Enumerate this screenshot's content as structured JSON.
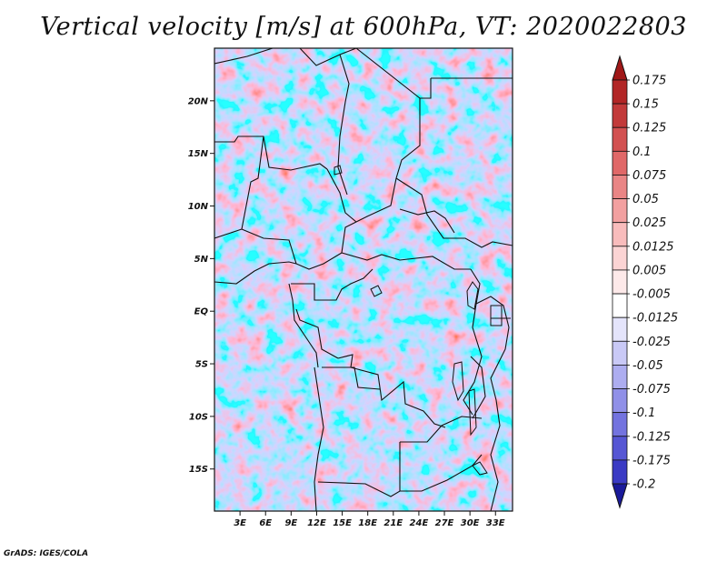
{
  "title": "Vertical velocity [m/s] at 600hPa, VT: 2020022803",
  "credit": "GrADS: IGES/COLA",
  "map": {
    "lon_range": [
      0,
      35
    ],
    "lat_range": [
      -19,
      25
    ],
    "lat_ticks": [
      {
        "value": 20,
        "label": "20N"
      },
      {
        "value": 15,
        "label": "15N"
      },
      {
        "value": 10,
        "label": "10N"
      },
      {
        "value": 5,
        "label": "5N"
      },
      {
        "value": 0,
        "label": "EQ"
      },
      {
        "value": -5,
        "label": "5S"
      },
      {
        "value": -10,
        "label": "10S"
      },
      {
        "value": -15,
        "label": "15S"
      }
    ],
    "lon_ticks": [
      {
        "value": 3,
        "label": "3E"
      },
      {
        "value": 6,
        "label": "6E"
      },
      {
        "value": 9,
        "label": "9E"
      },
      {
        "value": 12,
        "label": "12E"
      },
      {
        "value": 15,
        "label": "15E"
      },
      {
        "value": 18,
        "label": "18E"
      },
      {
        "value": 21,
        "label": "21E"
      },
      {
        "value": 24,
        "label": "24E"
      },
      {
        "value": 27,
        "label": "27E"
      },
      {
        "value": 30,
        "label": "30E"
      },
      {
        "value": 33,
        "label": "33E"
      }
    ]
  },
  "colorbar": {
    "levels": [
      {
        "label": "0.175",
        "color": "#b22626"
      },
      {
        "label": "0.15",
        "color": "#c23a3a"
      },
      {
        "label": "0.125",
        "color": "#d25151"
      },
      {
        "label": "0.1",
        "color": "#e06868"
      },
      {
        "label": "0.075",
        "color": "#e98585"
      },
      {
        "label": "0.05",
        "color": "#f2a0a0"
      },
      {
        "label": "0.025",
        "color": "#f8bcbc"
      },
      {
        "label": "0.0125",
        "color": "#fbd4d4"
      },
      {
        "label": "0.005",
        "color": "#fde9e9"
      },
      {
        "label": "-0.005",
        "color": "#ffffff"
      },
      {
        "label": "-0.0125",
        "color": "#e4e4fb"
      },
      {
        "label": "-0.025",
        "color": "#c9c9f6"
      },
      {
        "label": "-0.05",
        "color": "#adadf0"
      },
      {
        "label": "-0.075",
        "color": "#9090e8"
      },
      {
        "label": "-0.1",
        "color": "#7373df"
      },
      {
        "label": "-0.125",
        "color": "#5656d4"
      },
      {
        "label": "-0.175",
        "color": "#3a3ac4"
      },
      {
        "label": "-0.2",
        "color": "#2424b0"
      }
    ],
    "top_arrow_color": "#a01818",
    "bottom_arrow_color": "#1a1a9a"
  }
}
